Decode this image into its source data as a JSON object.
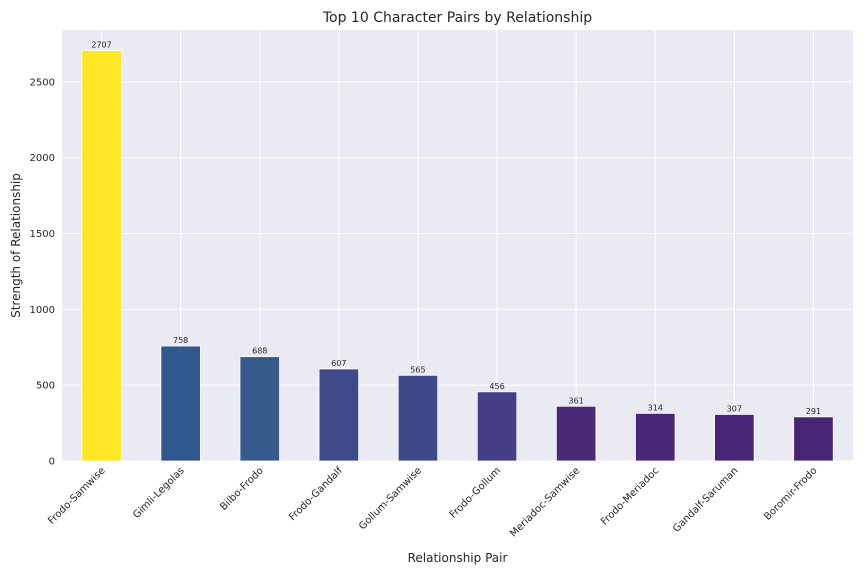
{
  "chart_data": {
    "type": "bar",
    "title": "Top 10 Character Pairs by Relationship",
    "xlabel": "Relationship Pair",
    "ylabel": "Strength of Relationship",
    "categories": [
      "Frodo-Samwise",
      "Gimli-Legolas",
      "Bilbo-Frodo",
      "Frodo-Gandalf",
      "Gollum-Samwise",
      "Frodo-Gollum",
      "Meriadoc-Samwise",
      "Frodo-Meriadoc",
      "Gandalf-Saruman",
      "Boromir-Frodo"
    ],
    "values": [
      2707,
      758,
      688,
      607,
      565,
      456,
      361,
      314,
      307,
      291
    ],
    "colors": [
      "#fde725",
      "#31588e",
      "#375a8c",
      "#3e4a89",
      "#3e4989",
      "#433e85",
      "#482b74",
      "#482777",
      "#482677",
      "#482475"
    ],
    "ylim": [
      0,
      2842
    ],
    "yticks": [
      0,
      500,
      1000,
      1500,
      2000,
      2500
    ],
    "grid": true,
    "background": "#eaeaf2"
  }
}
